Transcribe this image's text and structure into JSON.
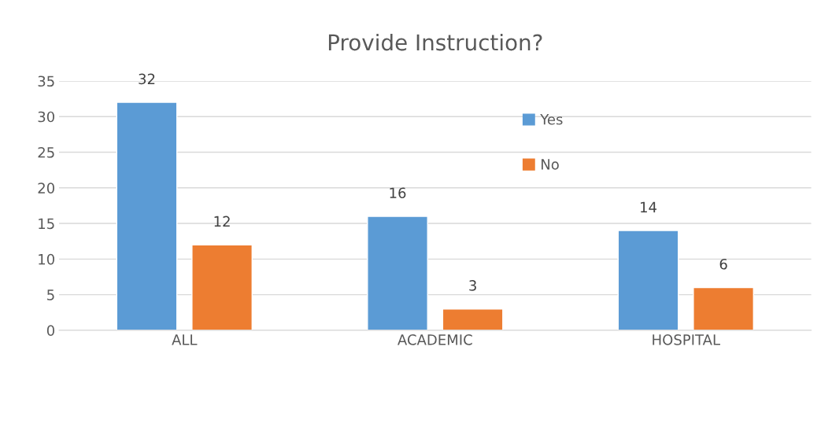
{
  "chart_data": {
    "type": "bar",
    "title": "Provide Instruction?",
    "categories": [
      "ALL",
      "ACADEMIC",
      "HOSPITAL"
    ],
    "series": [
      {
        "name": "Yes",
        "color": "#5b9bd5",
        "values": [
          32,
          16,
          14
        ]
      },
      {
        "name": "No",
        "color": "#ed7d31",
        "values": [
          12,
          3,
          6
        ]
      }
    ],
    "ylim": [
      0,
      35
    ],
    "yticks": [
      0,
      5,
      10,
      15,
      20,
      25,
      30,
      35
    ],
    "grid": "y",
    "legend": "top right",
    "data_labels": true
  }
}
